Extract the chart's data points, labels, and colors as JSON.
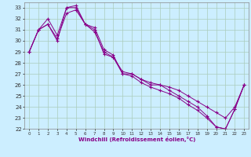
{
  "xlabel": "Windchill (Refroidissement éolien,°C)",
  "bg_color": "#cceeff",
  "grid_color": "#aaccbb",
  "line_color": "#880088",
  "xlim": [
    -0.5,
    23.5
  ],
  "ylim": [
    22,
    33.5
  ],
  "yticks": [
    22,
    23,
    24,
    25,
    26,
    27,
    28,
    29,
    30,
    31,
    32,
    33
  ],
  "xticks": [
    0,
    1,
    2,
    3,
    4,
    5,
    6,
    7,
    8,
    9,
    10,
    11,
    12,
    13,
    14,
    15,
    16,
    17,
    18,
    19,
    20,
    21,
    22,
    23
  ],
  "series1_x": [
    0,
    1,
    2,
    3,
    4,
    5,
    6,
    7,
    8,
    9,
    10,
    11,
    12,
    13,
    14,
    15,
    16,
    17,
    18,
    19,
    20,
    21,
    22,
    23
  ],
  "series1_y": [
    29.0,
    31.0,
    31.5,
    30.2,
    32.5,
    32.8,
    31.5,
    31.2,
    29.2,
    28.7,
    27.0,
    27.0,
    26.5,
    26.2,
    26.0,
    25.8,
    25.5,
    25.0,
    24.5,
    24.0,
    23.5,
    23.0,
    24.0,
    26.0
  ],
  "series2_x": [
    0,
    1,
    2,
    3,
    4,
    5,
    6,
    7,
    8,
    9,
    10,
    11,
    12,
    13,
    14,
    15,
    16,
    17,
    18,
    19,
    20,
    21,
    22,
    23
  ],
  "series2_y": [
    29.0,
    31.0,
    32.0,
    30.5,
    33.0,
    33.2,
    31.5,
    31.0,
    28.8,
    28.5,
    27.0,
    26.8,
    26.2,
    25.8,
    25.5,
    25.2,
    24.8,
    24.2,
    23.7,
    23.0,
    22.2,
    22.0,
    23.8,
    26.0
  ],
  "series3_x": [
    0,
    1,
    2,
    3,
    4,
    5,
    6,
    7,
    8,
    9,
    10,
    11,
    12,
    13,
    14,
    15,
    16,
    17,
    18,
    19,
    20,
    21,
    22,
    23
  ],
  "series3_y": [
    29.0,
    31.0,
    31.5,
    30.0,
    33.0,
    33.0,
    31.5,
    30.8,
    29.0,
    28.5,
    27.2,
    27.0,
    26.5,
    26.0,
    26.0,
    25.5,
    25.0,
    24.5,
    24.0,
    23.2,
    22.2,
    22.0,
    23.8,
    26.0
  ]
}
